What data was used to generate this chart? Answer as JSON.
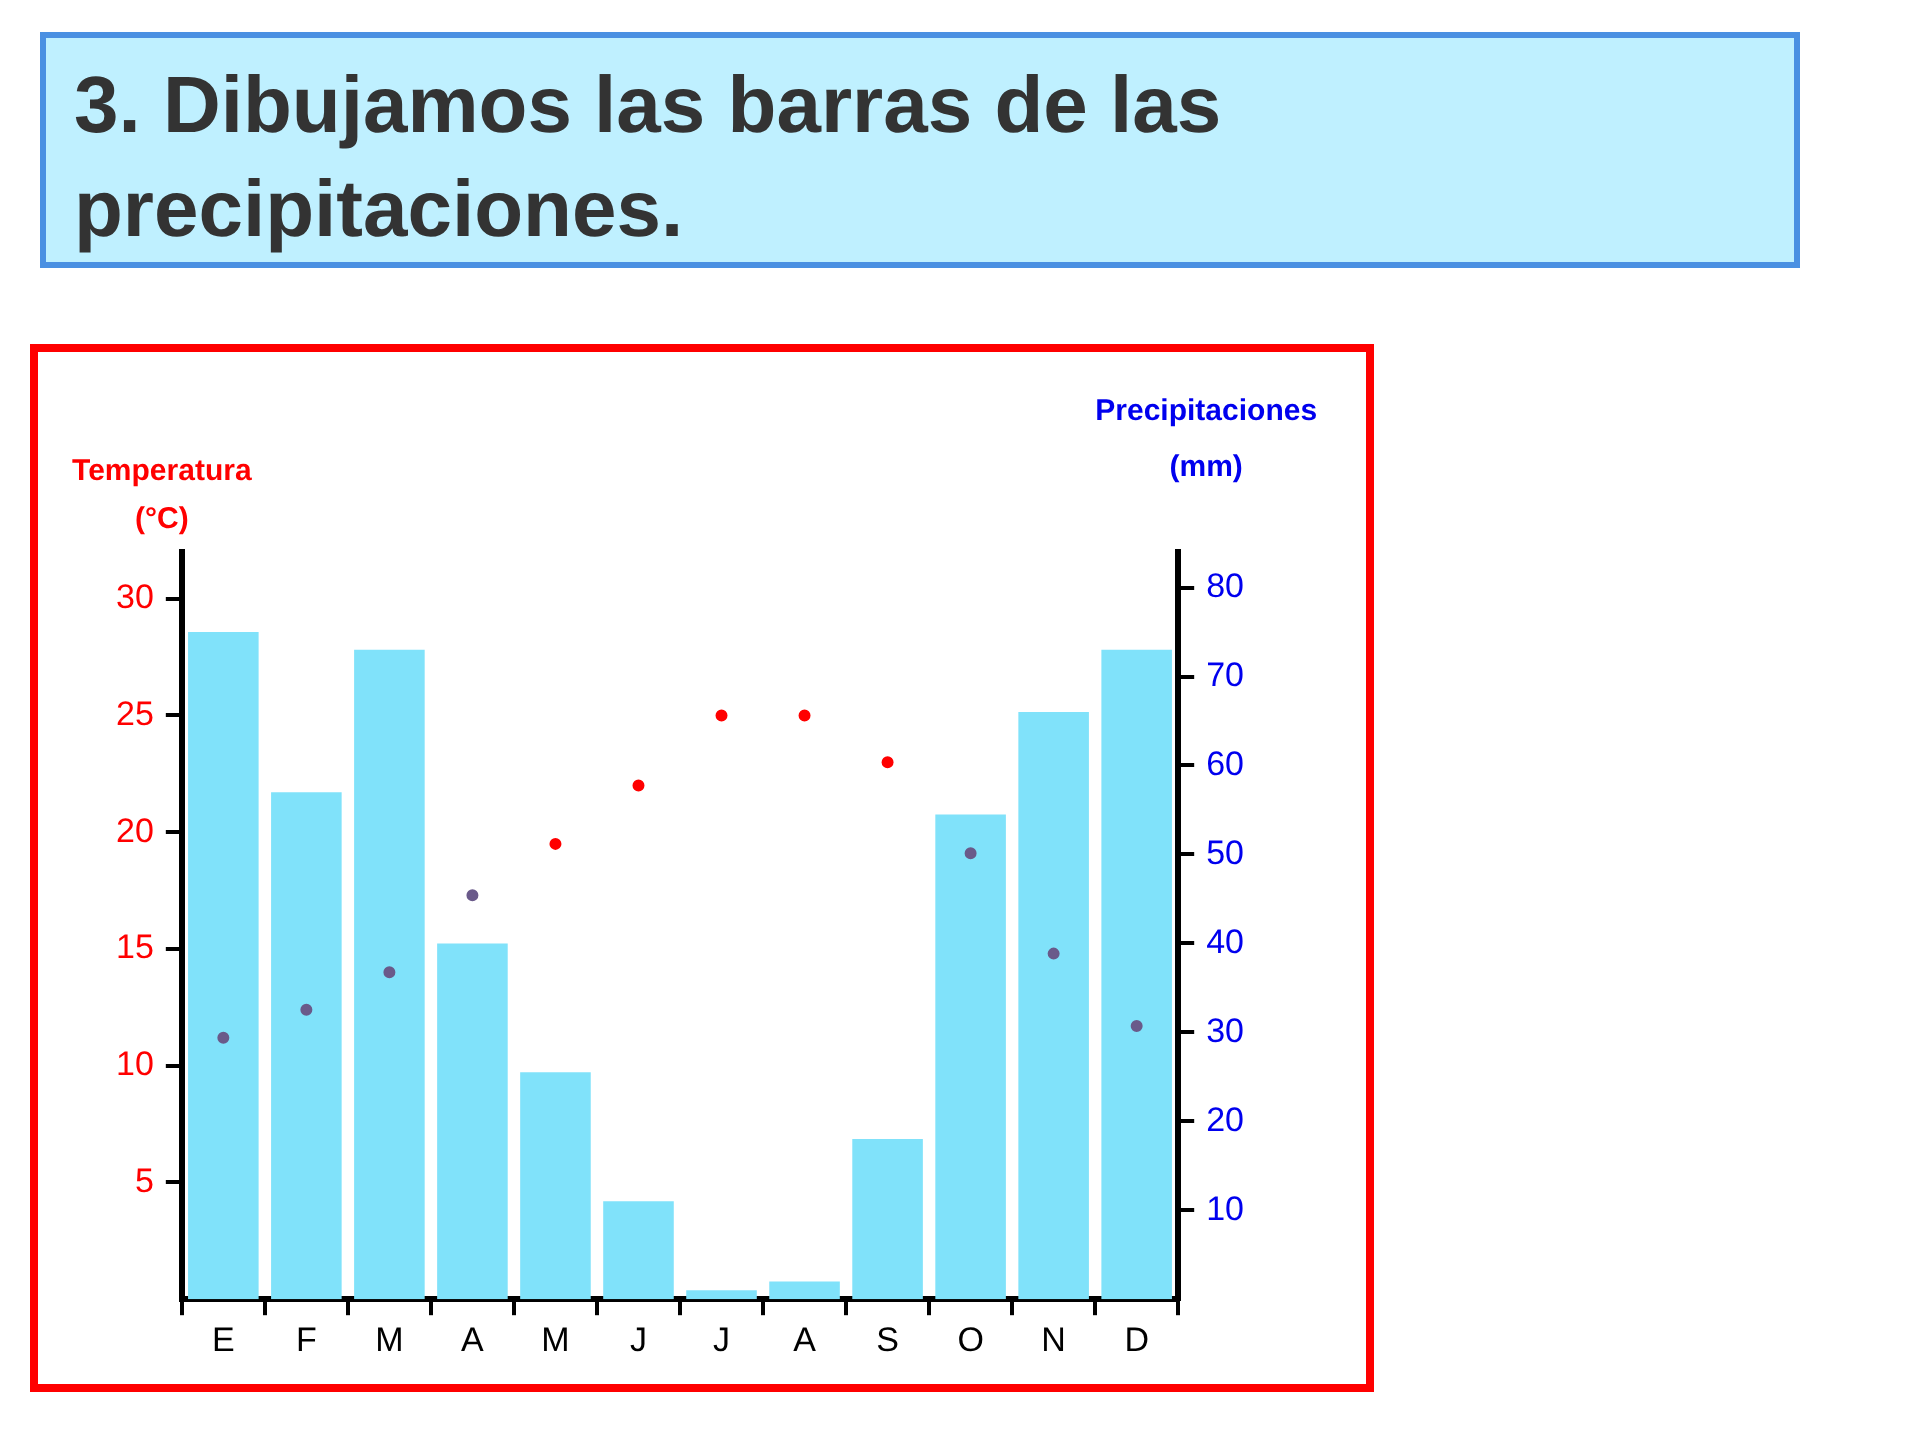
{
  "chart_data": {
    "type": "bar",
    "title": "3. Dibujamos las barras de las precipitaciones.",
    "ylabel": "Temperatura (°C)",
    "y2label": "Precipitaciones (mm)",
    "categories": [
      "E",
      "F",
      "M",
      "A",
      "M",
      "J",
      "J",
      "A",
      "S",
      "O",
      "N",
      "D"
    ],
    "series": [
      {
        "axis": "y2",
        "color": "#80e2fa",
        "values": [
          75,
          57,
          73,
          40,
          25.5,
          11,
          1,
          2,
          18,
          54.5,
          66,
          73
        ]
      },
      {
        "type": "scatter",
        "axis": "y",
        "color": "#ff0000",
        "colors": [
          "#6a5a8a",
          "#6a5a8a",
          "#6a5a8a",
          "#6a5a8a",
          "#ff0000",
          "#ff0000",
          "#ff0000",
          "#ff0000",
          "#ff0000",
          "#6a5a8a",
          "#6a5a8a",
          "#6a5a8a"
        ],
        "values": [
          11.2,
          12.4,
          14,
          17.3,
          19.5,
          22,
          25,
          25,
          23,
          19.1,
          14.8,
          11.7
        ]
      }
    ],
    "ylim": [
      0,
      32
    ],
    "yticks": [
      5,
      10,
      15,
      20,
      25,
      30
    ],
    "y2lim": [
      0,
      84
    ],
    "y2ticks": [
      10,
      20,
      30,
      40,
      50,
      60,
      70,
      80
    ],
    "grid": false,
    "legend": false,
    "marker": "circle"
  }
}
